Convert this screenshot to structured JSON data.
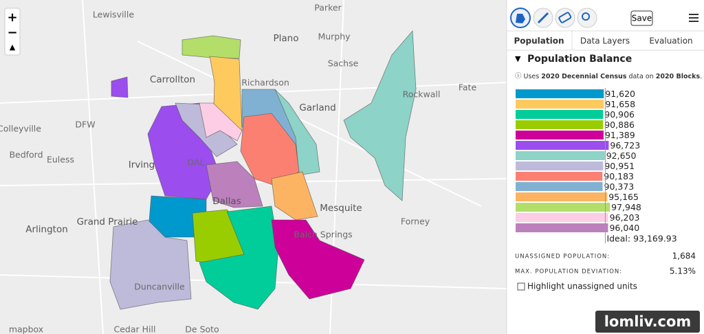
{
  "toolbar": {
    "save": "Save"
  },
  "tabs": [
    "Population",
    "Data Layers",
    "Evaluation"
  ],
  "panel_title": "Population Balance",
  "note": [
    "Uses ",
    "2020 Decennial Census",
    " data on ",
    "2020 Blocks",
    "."
  ],
  "chart_data": {
    "type": "bar",
    "orientation": "horizontal",
    "values": [
      91620,
      91658,
      90906,
      90886,
      91389,
      96723,
      92650,
      90951,
      90183,
      90373,
      95165,
      97948,
      96203,
      96040
    ],
    "value_labels": [
      "91,620",
      "91,658",
      "90,906",
      "90,886",
      "91,389",
      "96,723",
      "92,650",
      "90,951",
      "90,183",
      "90,373",
      "95,165",
      "97,948",
      "96,203",
      "96,040"
    ],
    "colors": [
      "#0099cd",
      "#ffca5d",
      "#00cd99",
      "#99cd00",
      "#cd0099",
      "#9b4dee",
      "#8dd3c7",
      "#bebada",
      "#fb8072",
      "#80b1d3",
      "#fdb462",
      "#b3de69",
      "#fccde5",
      "#bc80bd"
    ],
    "xlim": [
      0,
      100000
    ],
    "ideal": 93169.93,
    "ideal_label": "Ideal: 93,169.93"
  },
  "stats": [
    {
      "label": "UNASSIGNED POPULATION:",
      "value": "1,684"
    },
    {
      "label": "MAX. POPULATION DEVIATION:",
      "value": "5.13%"
    }
  ],
  "checkbox": "Highlight unassigned units",
  "map_labels": [
    "Lewisville",
    "Parker",
    "Plano",
    "Murphy",
    "Carrollton",
    "Richardson",
    "Sachse",
    "Rockwall",
    "Fate",
    "Garland",
    "DFW",
    "Colleyville",
    "Bedford",
    "Euless",
    "Irving",
    "DAL",
    "Dallas",
    "Mesquite",
    "Arlington",
    "Grand Prairie",
    "Forney",
    "Balch Springs",
    "Duncanville",
    "Cedar Hill",
    "De Soto",
    "mapbox"
  ],
  "watermark": "lomliv.com"
}
